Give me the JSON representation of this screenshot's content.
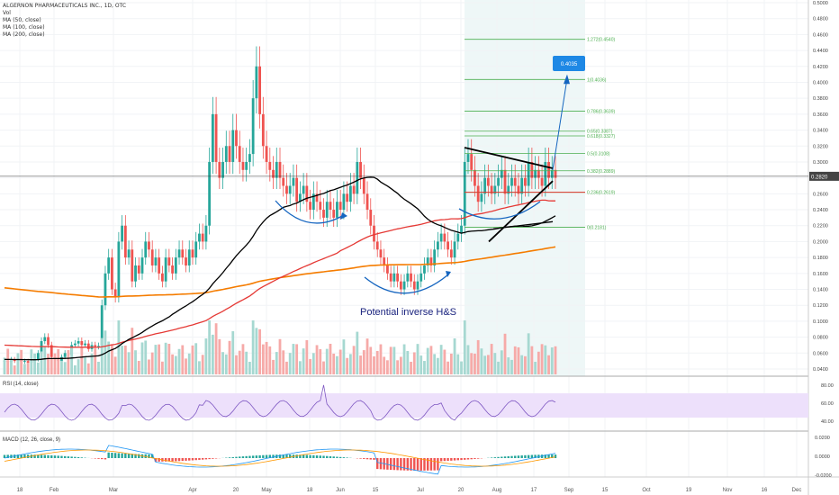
{
  "title": "ALGERNON PHARMACEUTICALS INC., 1D, OTC",
  "legend_lines": [
    "Vol",
    "MA (50, close)",
    "MA (100, close)",
    "MA (200, close)"
  ],
  "rsi_label": "RSI (14, close)",
  "macd_label": "MACD (12, 26, close, 9)",
  "annotation": "Potential inverse H&S",
  "target_box": "0.4035",
  "last_price_label": "0.2820",
  "colors": {
    "up": "#26a69a",
    "down": "#ef5350",
    "ma50": "#000000",
    "ma100": "#e53935",
    "ma200": "#f57c00",
    "rsi": "#7e57c2",
    "rsi_band": "#ede0fb",
    "macd": "#2196f3",
    "signal": "#ff9800",
    "fib": "#4caf50",
    "arrow": "#1565c0",
    "target_box": "#1e88e5"
  },
  "chart_data": {
    "type": "candlestick",
    "price_axis": [
      "0.5000",
      "0.4800",
      "0.4600",
      "0.4400",
      "0.4200",
      "0.4000",
      "0.3800",
      "0.3600",
      "0.3400",
      "0.3200",
      "0.3000",
      "0.2800",
      "0.2600",
      "0.2400",
      "0.2200",
      "0.2000",
      "0.1800",
      "0.1600",
      "0.1400",
      "0.1200",
      "0.1000",
      "0.0800",
      "0.0600",
      "0.0400"
    ],
    "x_axis": [
      "18",
      "Feb",
      "Mar",
      "Apr",
      "20",
      "May",
      "18",
      "Jun",
      "15",
      "Jul",
      "20",
      "Aug",
      "17",
      "Sep",
      "15",
      "Oct",
      "19",
      "Nov",
      "16",
      "Dec"
    ],
    "rsi_axis": [
      "80.00",
      "60.00",
      "40.00"
    ],
    "macd_axis": [
      "0.0200",
      "0.0000",
      "-0.0200"
    ],
    "fib_levels": [
      {
        "label": "1.272(0.4540)",
        "value": 0.454
      },
      {
        "label": "1(0.4036)",
        "value": 0.4036
      },
      {
        "label": "0.786(0.3639)",
        "value": 0.3639
      },
      {
        "label": "0.65(0.3387)",
        "value": 0.3387
      },
      {
        "label": "0.618(0.3327)",
        "value": 0.3327
      },
      {
        "label": "0.5(0.3108)",
        "value": 0.3108
      },
      {
        "label": "0.382(0.2889)",
        "value": 0.2889
      },
      {
        "label": "0.236(0.2619)",
        "value": 0.2619
      },
      {
        "label": "0(0.2181)",
        "value": 0.2181
      }
    ],
    "last_price": 0.282,
    "closes": [
      0.05,
      0.049,
      0.052,
      0.05,
      0.051,
      0.049,
      0.05,
      0.048,
      0.05,
      0.052,
      0.06,
      0.075,
      0.08,
      0.07,
      0.055,
      0.052,
      0.05,
      0.055,
      0.06,
      0.058,
      0.07,
      0.072,
      0.075,
      0.07,
      0.072,
      0.065,
      0.07,
      0.068,
      0.069,
      0.12,
      0.16,
      0.18,
      0.14,
      0.13,
      0.2,
      0.22,
      0.18,
      0.19,
      0.15,
      0.17,
      0.16,
      0.18,
      0.2,
      0.19,
      0.17,
      0.18,
      0.16,
      0.15,
      0.18,
      0.17,
      0.16,
      0.18,
      0.19,
      0.18,
      0.17,
      0.19,
      0.18,
      0.2,
      0.21,
      0.2,
      0.22,
      0.3,
      0.36,
      0.3,
      0.28,
      0.3,
      0.32,
      0.3,
      0.34,
      0.32,
      0.3,
      0.29,
      0.3,
      0.31,
      0.38,
      0.42,
      0.36,
      0.32,
      0.3,
      0.29,
      0.28,
      0.3,
      0.28,
      0.27,
      0.26,
      0.27,
      0.28,
      0.25,
      0.26,
      0.27,
      0.25,
      0.24,
      0.26,
      0.25,
      0.24,
      0.23,
      0.25,
      0.24,
      0.23,
      0.25,
      0.24,
      0.26,
      0.25,
      0.27,
      0.26,
      0.3,
      0.28,
      0.26,
      0.24,
      0.22,
      0.2,
      0.19,
      0.18,
      0.17,
      0.16,
      0.15,
      0.16,
      0.15,
      0.14,
      0.15,
      0.16,
      0.15,
      0.14,
      0.15,
      0.16,
      0.17,
      0.18,
      0.17,
      0.19,
      0.2,
      0.21,
      0.2,
      0.19,
      0.18,
      0.2,
      0.21,
      0.22,
      0.3,
      0.31,
      0.29,
      0.27,
      0.25,
      0.26,
      0.28,
      0.27,
      0.26,
      0.27,
      0.28,
      0.29,
      0.26,
      0.27,
      0.28,
      0.27,
      0.26,
      0.28,
      0.27,
      0.3,
      0.28,
      0.29,
      0.28,
      0.27,
      0.3,
      0.28,
      0.29,
      0.28
    ],
    "ma50_start": 0.052,
    "ma100_start": 0.07,
    "ma200_start": 0.142
  }
}
